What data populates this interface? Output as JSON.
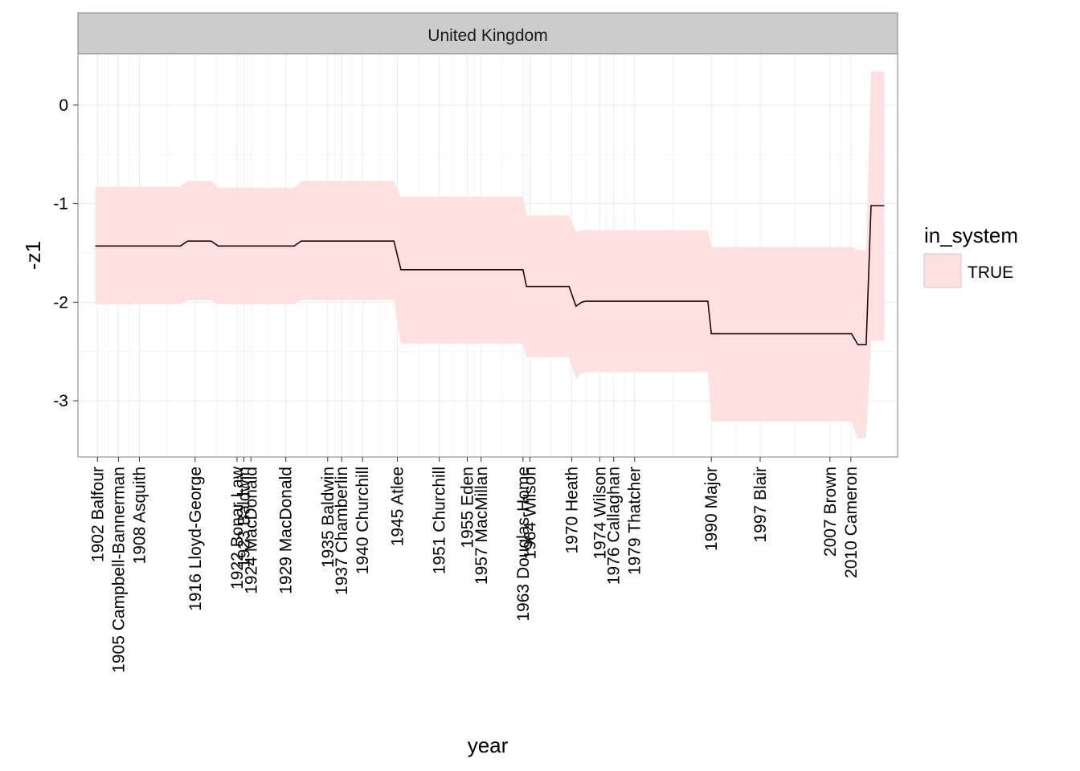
{
  "chart_data": {
    "type": "line",
    "facet_title": "United Kingdom",
    "xlabel": "year",
    "ylabel": "-z1",
    "ylim": [
      -3.57,
      0.52
    ],
    "xlim": [
      1899.2,
      2016.7
    ],
    "yticks": [
      -3,
      -2,
      -1,
      0
    ],
    "grid": true,
    "legend": {
      "title": "in_system",
      "position": "right",
      "entries": [
        {
          "label": "TRUE",
          "fill": "#ffe0e0"
        }
      ]
    },
    "colors": {
      "line": "#1a0a0a",
      "ribbon": "#ffe0e0",
      "strip": "#cccccc",
      "panel_border": "#808080"
    },
    "xticks": [
      {
        "x": 1902,
        "label": "1902 Balfour"
      },
      {
        "x": 1905,
        "label": "1905 Campbell-Bannerman"
      },
      {
        "x": 1908,
        "label": "1908 Asquith"
      },
      {
        "x": 1916,
        "label": "1916 Lloyd-George"
      },
      {
        "x": 1922,
        "label": "1922 Bonar Law"
      },
      {
        "x": 1923,
        "label": "1923 Baldwin"
      },
      {
        "x": 1924,
        "label": "1924 MacDonald"
      },
      {
        "x": 1929,
        "label": "1929 MacDonald"
      },
      {
        "x": 1935,
        "label": "1935 Baldwin"
      },
      {
        "x": 1937,
        "label": "1937 Chamberlin"
      },
      {
        "x": 1940,
        "label": "1940 Churchill"
      },
      {
        "x": 1945,
        "label": "1945 Atlee"
      },
      {
        "x": 1951,
        "label": "1951 Churchill"
      },
      {
        "x": 1955,
        "label": "1955 Eden"
      },
      {
        "x": 1957,
        "label": "1957 MacMillan"
      },
      {
        "x": 1963,
        "label": "1963 Douglas-Home"
      },
      {
        "x": 1964,
        "label": "1964 Wilson"
      },
      {
        "x": 1970,
        "label": "1970 Heath"
      },
      {
        "x": 1974,
        "label": "1974 Wilson"
      },
      {
        "x": 1976,
        "label": "1976 Callaghan"
      },
      {
        "x": 1979,
        "label": "1979 Thatcher"
      },
      {
        "x": 1990,
        "label": "1990 Major"
      },
      {
        "x": 1997,
        "label": "1997 Blair"
      },
      {
        "x": 2007,
        "label": "2007 Brown"
      },
      {
        "x": 2010,
        "label": "2010 Cameron"
      }
    ],
    "series": [
      {
        "x": [
          1901.7,
          1913.9,
          1914.9,
          1918.3,
          1919.3,
          1930.2,
          1931.2,
          1944.5,
          1945.5,
          1963.0,
          1963.5,
          1969.6,
          1970.6,
          1971.4,
          1972.0,
          1989.5,
          1990.0,
          2010.1,
          2011.0,
          2012.2,
          2012.9,
          2014.8
        ],
        "y": [
          -1.43,
          -1.43,
          -1.38,
          -1.38,
          -1.43,
          -1.43,
          -1.38,
          -1.38,
          -1.67,
          -1.67,
          -1.84,
          -1.84,
          -2.04,
          -2.0,
          -1.99,
          -1.99,
          -2.32,
          -2.32,
          -2.43,
          -2.43,
          -1.02,
          -1.02
        ],
        "upper": [
          -0.83,
          -0.83,
          -0.77,
          -0.77,
          -0.84,
          -0.84,
          -0.77,
          -0.77,
          -0.93,
          -0.93,
          -1.12,
          -1.12,
          -1.29,
          -1.27,
          -1.27,
          -1.27,
          -1.44,
          -1.44,
          -1.47,
          -1.47,
          0.34,
          0.34
        ],
        "lower": [
          -2.02,
          -2.02,
          -1.98,
          -1.98,
          -2.02,
          -2.02,
          -1.98,
          -1.98,
          -2.42,
          -2.42,
          -2.56,
          -2.56,
          -2.78,
          -2.72,
          -2.71,
          -2.71,
          -3.21,
          -3.21,
          -3.38,
          -3.38,
          -2.39,
          -2.39
        ]
      }
    ]
  }
}
